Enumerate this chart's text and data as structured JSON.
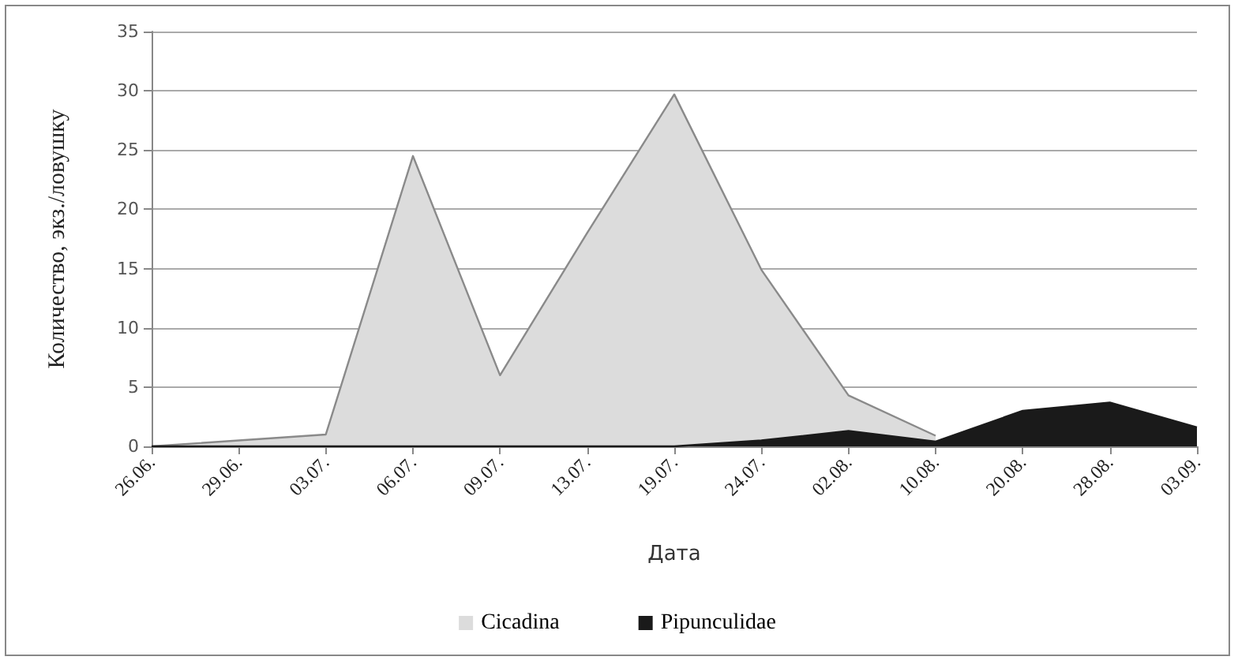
{
  "chart_data": {
    "type": "area",
    "xlabel": "Дата",
    "ylabel": "Количество, экз./ловушку",
    "categories": [
      "26.06.",
      "29.06.",
      "03.07.",
      "06.07.",
      "09.07.",
      "13.07.",
      "19.07.",
      "24.07.",
      "02.08.",
      "10.08.",
      "20.08.",
      "28.08.",
      "03.09."
    ],
    "series": [
      {
        "name": "Cicadina",
        "color": "#dcdcdc",
        "values": [
          0,
          0.5,
          1,
          24.5,
          6,
          18,
          29.7,
          14.9,
          4.3,
          0.9,
          null,
          null,
          null
        ]
      },
      {
        "name": "Pipunculidae",
        "color": "#1a1a1a",
        "values": [
          0,
          0,
          0,
          0,
          0,
          0,
          0,
          0.5,
          1.3,
          0.4,
          3,
          3.7,
          1.6
        ]
      }
    ],
    "ylim": [
      0,
      35
    ],
    "yticks": [
      0,
      5,
      10,
      15,
      20,
      25,
      30,
      35
    ],
    "grid": "y",
    "legend": "bottom"
  }
}
